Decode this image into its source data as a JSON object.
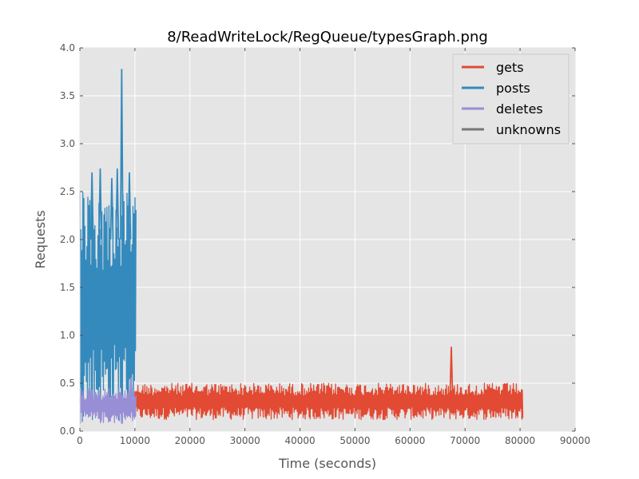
{
  "chart_data": {
    "type": "line",
    "title": "8/ReadWriteLock/RegQueue/typesGraph.png",
    "xlabel": "Time (seconds)",
    "ylabel": "Requests",
    "xlim": [
      0,
      90000
    ],
    "ylim": [
      0,
      4.0
    ],
    "xticks": [
      "0",
      "10000",
      "20000",
      "30000",
      "40000",
      "50000",
      "60000",
      "70000",
      "80000",
      "90000"
    ],
    "yticks": [
      "0.0",
      "0.5",
      "1.0",
      "1.5",
      "2.0",
      "2.5",
      "3.0",
      "3.5",
      "4.0"
    ],
    "grid": true,
    "legend_position": "top-right",
    "series": [
      {
        "name": "gets",
        "color": "#e24a33",
        "x_range": [
          10000,
          80500
        ],
        "band_low": 0.12,
        "band_high": 0.5,
        "peaks": [
          {
            "x": 67500,
            "y": 0.88
          }
        ]
      },
      {
        "name": "posts",
        "color": "#348abd",
        "x_range": [
          0,
          10200
        ],
        "band_low": 0.1,
        "band_high": 2.5,
        "peaks": [
          {
            "x": 2200,
            "y": 2.7
          },
          {
            "x": 3700,
            "y": 2.74
          },
          {
            "x": 5800,
            "y": 2.64
          },
          {
            "x": 6800,
            "y": 2.74
          },
          {
            "x": 7600,
            "y": 3.78
          },
          {
            "x": 9000,
            "y": 2.7
          }
        ]
      },
      {
        "name": "deletes",
        "color": "#988ed5",
        "x_range": [
          0,
          10200
        ],
        "band_low": 0.08,
        "band_high": 0.45,
        "peaks": [
          {
            "x": 9300,
            "y": 0.56
          }
        ]
      },
      {
        "name": "unknowns",
        "color": "#777777",
        "x_range": [],
        "band_low": 0,
        "band_high": 0,
        "peaks": []
      }
    ]
  }
}
